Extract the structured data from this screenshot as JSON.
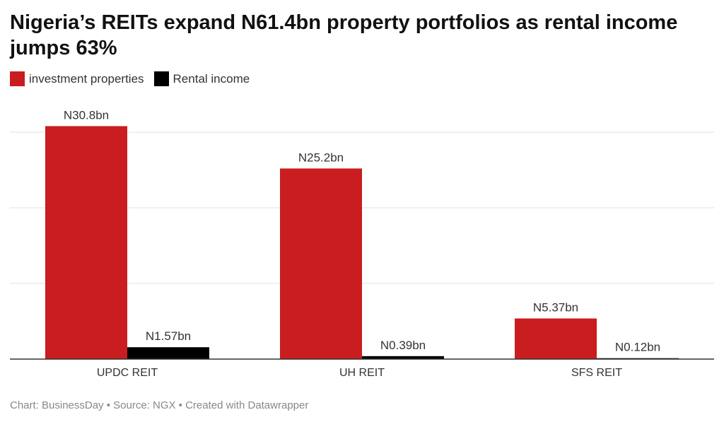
{
  "title": "Nigeria’s REITs expand N61.4bn property portfolios as rental income jumps 63%",
  "legend": [
    {
      "label": "investment properties",
      "color": "#c91d1f"
    },
    {
      "label": "Rental income",
      "color": "#000000"
    }
  ],
  "footer": "Chart: BusinessDay • Source: NGX • Created with Datawrapper",
  "chart_data": {
    "type": "bar",
    "categories": [
      "UPDC REIT",
      "UH REIT",
      "SFS REIT"
    ],
    "series": [
      {
        "name": "investment properties",
        "color": "#c91d1f",
        "values": [
          30.8,
          25.2,
          5.37
        ],
        "labels": [
          "N30.8bn",
          "N25.2bn",
          "N5.37bn"
        ]
      },
      {
        "name": "Rental income",
        "color": "#000000",
        "values": [
          1.57,
          0.39,
          0.12
        ],
        "labels": [
          "N1.57bn",
          "N0.39bn",
          "N0.12bn"
        ]
      }
    ],
    "ylim": [
      0,
      30
    ],
    "gridlines": [
      0,
      10,
      20,
      30
    ],
    "grid": true,
    "legend_position": "top-left"
  }
}
